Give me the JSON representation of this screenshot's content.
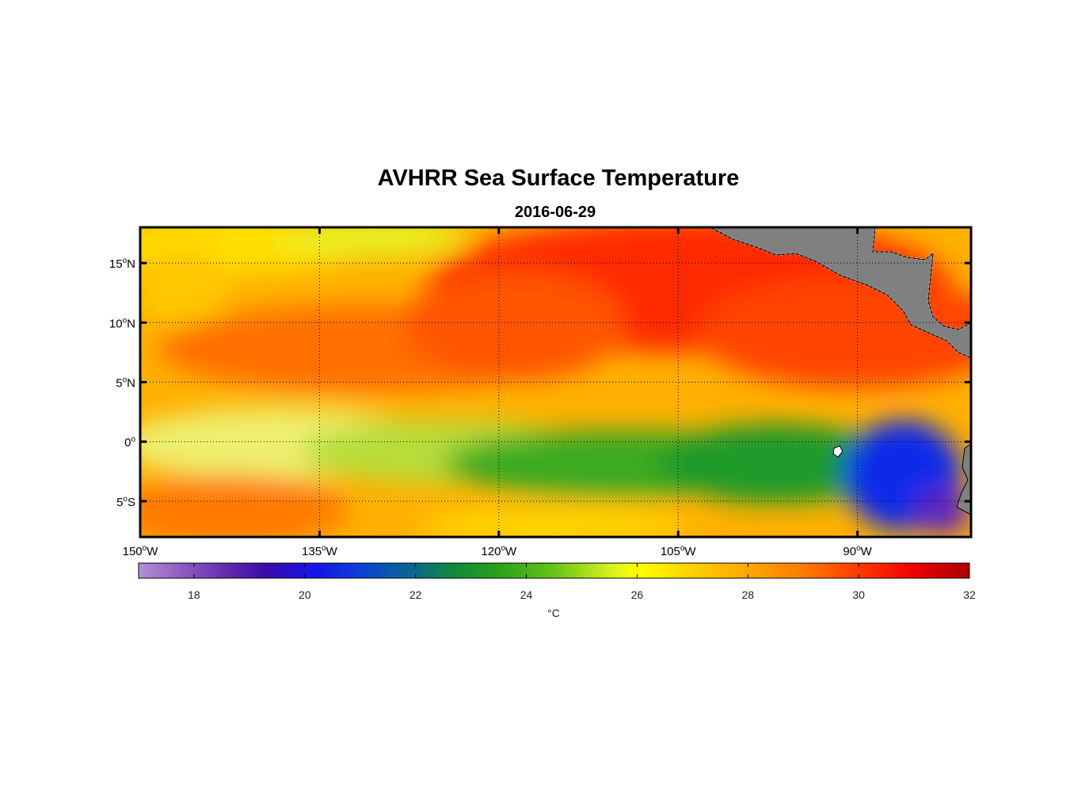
{
  "title": "AVHRR Sea Surface Temperature",
  "subtitle": "2016-06-29",
  "map": {
    "lon_range": [
      -150,
      -80.5
    ],
    "lat_range": [
      -8,
      18
    ],
    "grid": "dotted",
    "x_ticks": [
      {
        "deg": "150",
        "hemi": "W",
        "lon": -150
      },
      {
        "deg": "135",
        "hemi": "W",
        "lon": -135
      },
      {
        "deg": "120",
        "hemi": "W",
        "lon": -120
      },
      {
        "deg": "105",
        "hemi": "W",
        "lon": -105
      },
      {
        "deg": "90",
        "hemi": "W",
        "lon": -90
      }
    ],
    "y_ticks": [
      {
        "deg": "15",
        "hemi": "N",
        "lat": 15
      },
      {
        "deg": "10",
        "hemi": "N",
        "lat": 10
      },
      {
        "deg": "5",
        "hemi": "N",
        "lat": 5
      },
      {
        "deg": "0",
        "hemi": "",
        "lat": 0
      },
      {
        "deg": "5",
        "hemi": "S",
        "lat": -5
      }
    ],
    "land_color": "#808080"
  },
  "colorbar": {
    "range": [
      17,
      32
    ],
    "ticks": [
      "18",
      "20",
      "22",
      "24",
      "26",
      "28",
      "30",
      "32"
    ],
    "unit": "°C",
    "colormap": [
      [
        17,
        "#b48fd6"
      ],
      [
        18.5,
        "#6a2fb0"
      ],
      [
        19.3,
        "#3a0aa8"
      ],
      [
        20.2,
        "#1515e8"
      ],
      [
        21,
        "#0b40d8"
      ],
      [
        22,
        "#0a6a88"
      ],
      [
        22.7,
        "#0f8a3a"
      ],
      [
        23.5,
        "#2aa11a"
      ],
      [
        24.5,
        "#66c418"
      ],
      [
        25.5,
        "#d6ef20"
      ],
      [
        26,
        "#ffff00"
      ],
      [
        27,
        "#ffd000"
      ],
      [
        28,
        "#ffa600"
      ],
      [
        29,
        "#ff7a00"
      ],
      [
        30,
        "#ff3a00"
      ],
      [
        31,
        "#f00000"
      ],
      [
        32,
        "#aa0000"
      ]
    ]
  }
}
